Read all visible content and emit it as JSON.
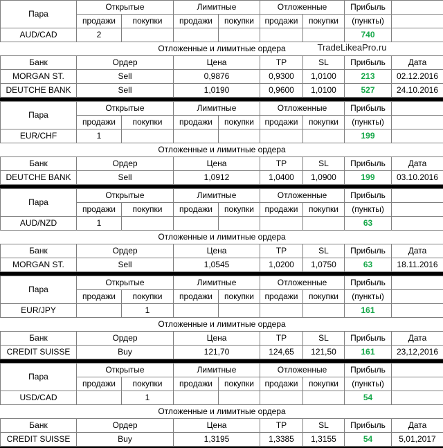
{
  "headers": {
    "pair": "Пара",
    "open": "Открытые",
    "limit": "Лимитные",
    "pending": "Отложенные",
    "profit": "Прибыль",
    "sells": "продажи",
    "buys": "покупки",
    "points": "(пункты)",
    "orders_title": "Отложенные и лимитные ордера",
    "bank": "Банк",
    "order": "Ордер",
    "price": "Цена",
    "tp": "TP",
    "sl": "SL",
    "date": "Дата"
  },
  "watermark": "TradeLikeaPro.ru",
  "accent_color": "#17a84a",
  "blocks": [
    {
      "pair": "AUD/CAD",
      "open_sell": "2",
      "open_buy": "",
      "profit": "740",
      "orders": [
        {
          "bank": "MORGAN ST.",
          "order": "Sell",
          "price": "0,9876",
          "tp": "0,9300",
          "sl": "1,0100",
          "profit": "213",
          "date": "02.12.2016"
        },
        {
          "bank": "DEUTCHE BANK",
          "order": "Sell",
          "price": "1,0190",
          "tp": "0,9600",
          "sl": "1,0100",
          "profit": "527",
          "date": "24.10.2016"
        }
      ]
    },
    {
      "pair": "EUR/CHF",
      "open_sell": "1",
      "open_buy": "",
      "profit": "199",
      "orders": [
        {
          "bank": "DEUTCHE BANK",
          "order": "Sell",
          "price": "1,0912",
          "tp": "1,0400",
          "sl": "1,0900",
          "profit": "199",
          "date": "03.10.2016"
        }
      ]
    },
    {
      "pair": "AUD/NZD",
      "open_sell": "1",
      "open_buy": "",
      "profit": "63",
      "orders": [
        {
          "bank": "MORGAN ST.",
          "order": "Sell",
          "price": "1,0545",
          "tp": "1,0200",
          "sl": "1,0750",
          "profit": "63",
          "date": "18.11.2016"
        }
      ]
    },
    {
      "pair": "EUR/JPY",
      "open_sell": "",
      "open_buy": "1",
      "profit": "161",
      "orders": [
        {
          "bank": "CREDIT SUISSE",
          "order": "Buy",
          "price": "121,70",
          "tp": "124,65",
          "sl": "121,50",
          "profit": "161",
          "date": "23,12,2016"
        }
      ]
    },
    {
      "pair": "USD/CAD",
      "open_sell": "",
      "open_buy": "1",
      "profit": "54",
      "orders": [
        {
          "bank": "CREDIT SUISSE",
          "order": "Buy",
          "price": "1,3195",
          "tp": "1,3385",
          "sl": "1,3155",
          "profit": "54",
          "date": "5,01,2017"
        }
      ]
    }
  ]
}
